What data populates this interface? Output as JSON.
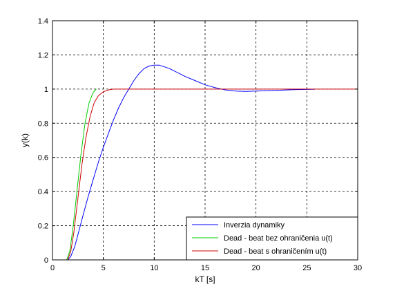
{
  "chart_data": {
    "type": "line",
    "xlabel": "kT [s]",
    "ylabel": "y(k)",
    "xlim": [
      0,
      30
    ],
    "ylim": [
      0,
      1.4
    ],
    "xticks": [
      0,
      5,
      10,
      15,
      20,
      25,
      30
    ],
    "yticks": [
      0,
      0.2,
      0.4,
      0.6,
      0.8,
      1,
      1.2,
      1.4
    ],
    "xtick_labels": [
      "0",
      "5",
      "10",
      "15",
      "20",
      "25",
      "30"
    ],
    "ytick_labels": [
      "0",
      "0.2",
      "0.4",
      "0.6",
      "0.8",
      "1",
      "1.2",
      "1.4"
    ],
    "grid": true,
    "legend_position": "bottom-right",
    "series": [
      {
        "name": "Inverzia dynamiky",
        "color": "#0000ff",
        "x": [
          0,
          1.5,
          1.8,
          2.2,
          2.6,
          3.0,
          3.5,
          4.0,
          4.5,
          5.0,
          5.5,
          6.0,
          6.5,
          7.0,
          7.5,
          8.0,
          8.5,
          9.0,
          9.5,
          10.0,
          10.5,
          11.0,
          11.5,
          12.0,
          12.5,
          13.0,
          14.0,
          15.0,
          16.0,
          17.0,
          18.0,
          19.0,
          20.0,
          21.0,
          22.0,
          23.0,
          24.0,
          25.0,
          25.8
        ],
        "y": [
          0,
          0,
          0.02,
          0.08,
          0.17,
          0.26,
          0.37,
          0.47,
          0.57,
          0.66,
          0.74,
          0.82,
          0.89,
          0.95,
          1.0,
          1.05,
          1.09,
          1.12,
          1.135,
          1.14,
          1.14,
          1.13,
          1.12,
          1.105,
          1.09,
          1.075,
          1.05,
          1.025,
          1.008,
          0.995,
          0.988,
          0.986,
          0.988,
          0.99,
          0.992,
          0.995,
          0.997,
          0.998,
          0.999
        ]
      },
      {
        "name": "Dead - beat bez ohraničenia u(t)",
        "color": "#00cc00",
        "x": [
          0,
          1.4,
          1.7,
          2.0,
          2.4,
          2.8,
          3.2,
          3.6,
          4.0,
          4.3
        ],
        "y": [
          0,
          0,
          0.05,
          0.18,
          0.4,
          0.62,
          0.8,
          0.92,
          0.98,
          1.0
        ]
      },
      {
        "name": "Dead - beat s ohraničením u(t)",
        "color": "#cc0000",
        "x": [
          0,
          1.5,
          1.8,
          2.1,
          2.5,
          2.9,
          3.3,
          3.7,
          4.1,
          4.5,
          5.0,
          5.5,
          6.0,
          7.0,
          10.0,
          15.0,
          20.0,
          25.0,
          30.0
        ],
        "y": [
          0,
          0,
          0.05,
          0.16,
          0.36,
          0.56,
          0.72,
          0.84,
          0.92,
          0.96,
          0.985,
          0.995,
          1.0,
          1.0,
          1.0,
          1.0,
          1.0,
          1.0,
          1.0
        ]
      }
    ]
  }
}
